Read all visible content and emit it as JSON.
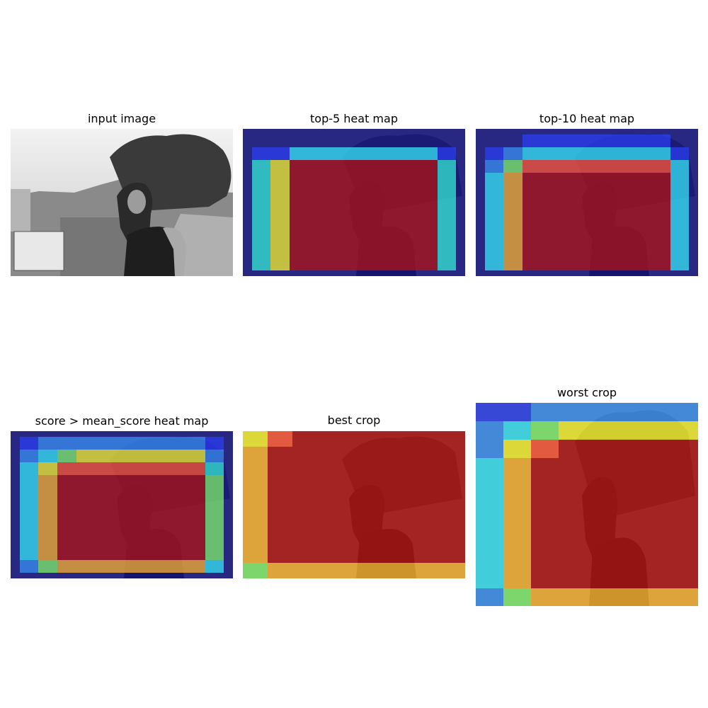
{
  "panels": [
    {
      "title": "input image"
    },
    {
      "title": "top-5 heat map"
    },
    {
      "title": "top-10 heat map"
    },
    {
      "title": "score > mean_score heat map"
    },
    {
      "title": "best crop"
    },
    {
      "title": "worst crop"
    }
  ],
  "colors": {
    "dark_blue": "#10108a",
    "blue": "#2b3ef0",
    "light_blue": "#3a8ff2",
    "cyan": "#36e6f5",
    "aqua": "#34ecd4",
    "green": "#7ff06a",
    "yellow": "#f7f22c",
    "orange": "#f9b12e",
    "red_orange": "#ff5533",
    "red": "#b21212"
  }
}
